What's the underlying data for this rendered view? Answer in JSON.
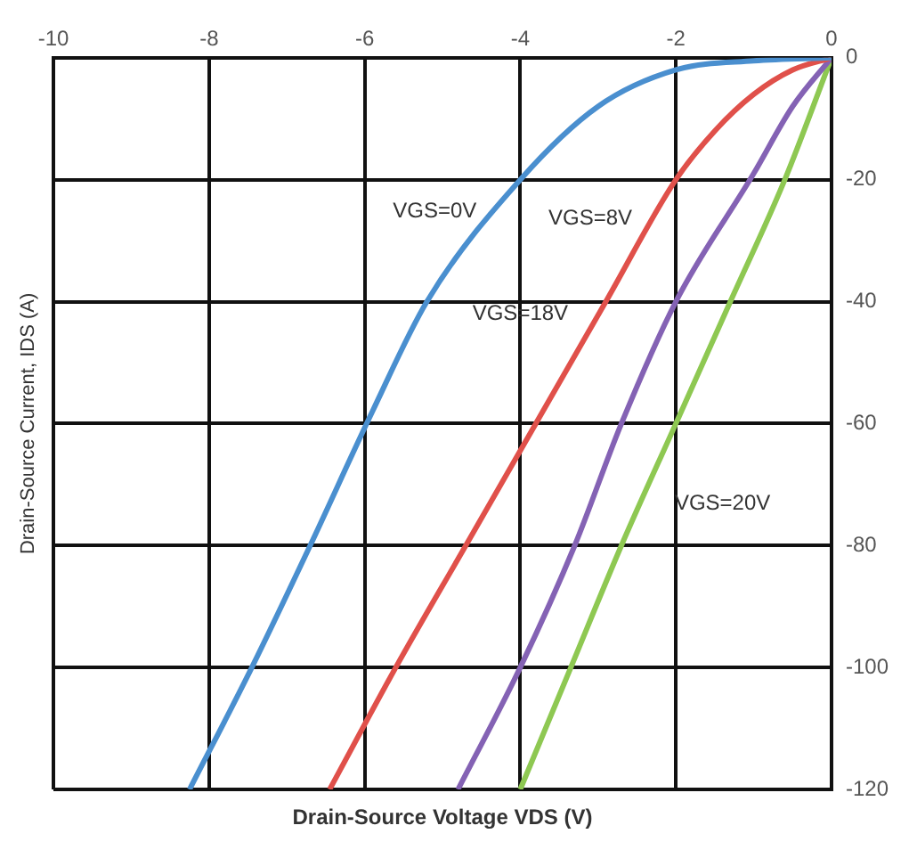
{
  "chart_data": {
    "type": "line",
    "xlabel": "Drain-Source Voltage VDS (V)",
    "ylabel": "Drain-Source Current, IDS (A)",
    "xlim": [
      -10,
      0
    ],
    "xticks": [
      -10,
      -8,
      -6,
      -4,
      -2,
      0
    ],
    "ylim": [
      -120,
      0
    ],
    "yticks": [
      0,
      -20,
      -40,
      -60,
      -80,
      -100,
      -120
    ],
    "grid": true,
    "legend": false,
    "marker": "none",
    "line_style": "solid",
    "series": [
      {
        "name": "VGS=0V",
        "color": "#4a8fcf",
        "x": [
          0,
          -1,
          -2,
          -3,
          -4,
          -5.2,
          -5.9,
          -6.7,
          -7.45,
          -8.25
        ],
        "values": [
          0,
          -0.5,
          -2,
          -8,
          -20,
          -40,
          -58,
          -80,
          -100,
          -120
        ]
      },
      {
        "name": "VGS=8V",
        "color": "#e0504a",
        "x": [
          0,
          -0.5,
          -1,
          -1.5,
          -2,
          -2.9,
          -3.8,
          -4.7,
          -5.6,
          -6.45
        ],
        "values": [
          0,
          -2,
          -6,
          -12,
          -20,
          -40,
          -60,
          -80,
          -100,
          -120
        ]
      },
      {
        "name": "VGS=18V",
        "color": "#8462b4",
        "x": [
          0,
          -0.5,
          -1,
          -2,
          -2.7,
          -3.3,
          -4,
          -4.8
        ],
        "values": [
          0,
          -8,
          -19,
          -40,
          -60,
          -80,
          -100,
          -120
        ]
      },
      {
        "name": "VGS=20V",
        "color": "#8ec852",
        "x": [
          0,
          -0.6,
          -1.3,
          -2,
          -2.7,
          -3.35,
          -4
        ],
        "values": [
          0,
          -20,
          -40,
          -60,
          -80,
          -100,
          -120
        ]
      }
    ]
  }
}
